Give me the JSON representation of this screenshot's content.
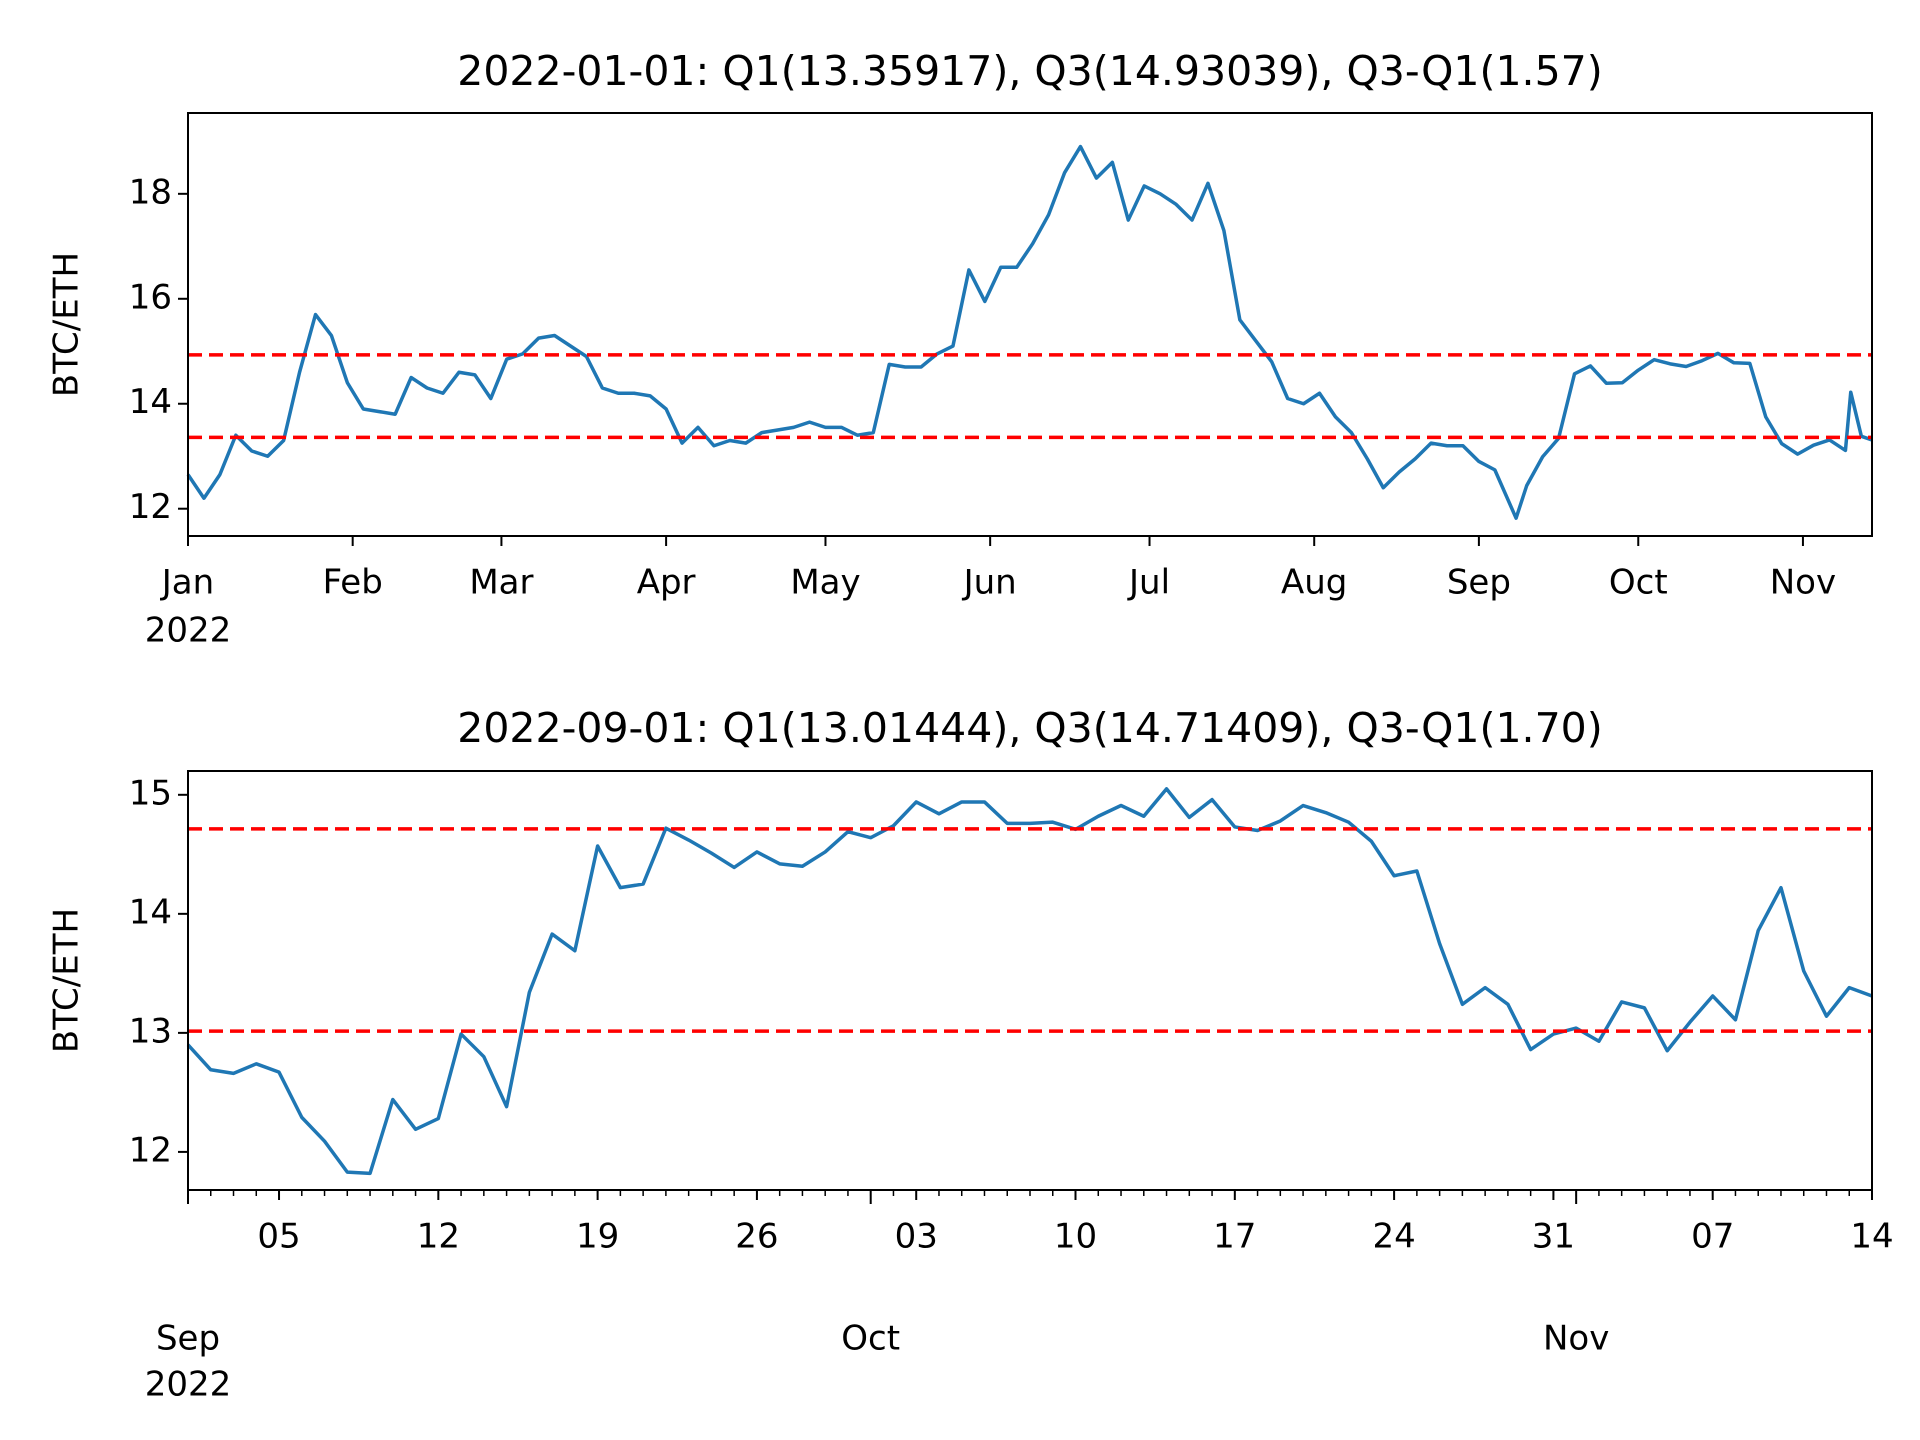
{
  "chart_data": [
    {
      "type": "line",
      "title": "2022-01-01: Q1(13.35917), Q3(14.93039), Q3-Q1(1.57)",
      "y_label": "BTC/ETH",
      "x": [
        "2022-01-01",
        "2022-01-04",
        "2022-01-07",
        "2022-01-10",
        "2022-01-13",
        "2022-01-16",
        "2022-01-19",
        "2022-01-22",
        "2022-01-25",
        "2022-01-28",
        "2022-01-31",
        "2022-02-03",
        "2022-02-06",
        "2022-02-09",
        "2022-02-12",
        "2022-02-15",
        "2022-02-18",
        "2022-02-21",
        "2022-02-24",
        "2022-02-27",
        "2022-03-02",
        "2022-03-05",
        "2022-03-08",
        "2022-03-11",
        "2022-03-14",
        "2022-03-17",
        "2022-03-20",
        "2022-03-23",
        "2022-03-26",
        "2022-03-29",
        "2022-04-01",
        "2022-04-04",
        "2022-04-07",
        "2022-04-10",
        "2022-04-13",
        "2022-04-16",
        "2022-04-19",
        "2022-04-22",
        "2022-04-25",
        "2022-04-28",
        "2022-05-01",
        "2022-05-04",
        "2022-05-07",
        "2022-05-10",
        "2022-05-13",
        "2022-05-16",
        "2022-05-19",
        "2022-05-22",
        "2022-05-25",
        "2022-05-28",
        "2022-05-31",
        "2022-06-03",
        "2022-06-06",
        "2022-06-09",
        "2022-06-12",
        "2022-06-15",
        "2022-06-18",
        "2022-06-21",
        "2022-06-24",
        "2022-06-27",
        "2022-06-30",
        "2022-07-03",
        "2022-07-06",
        "2022-07-09",
        "2022-07-12",
        "2022-07-15",
        "2022-07-18",
        "2022-07-21",
        "2022-07-24",
        "2022-07-27",
        "2022-07-30",
        "2022-08-02",
        "2022-08-05",
        "2022-08-08",
        "2022-08-11",
        "2022-08-14",
        "2022-08-17",
        "2022-08-20",
        "2022-08-23",
        "2022-08-26",
        "2022-08-29",
        "2022-09-01",
        "2022-09-04",
        "2022-09-08",
        "2022-09-10",
        "2022-09-13",
        "2022-09-16",
        "2022-09-19",
        "2022-09-22",
        "2022-09-25",
        "2022-09-28",
        "2022-10-01",
        "2022-10-04",
        "2022-10-07",
        "2022-10-10",
        "2022-10-13",
        "2022-10-16",
        "2022-10-19",
        "2022-10-22",
        "2022-10-25",
        "2022-10-28",
        "2022-10-31",
        "2022-11-03",
        "2022-11-06",
        "2022-11-09",
        "2022-11-10",
        "2022-11-12",
        "2022-11-14"
      ],
      "series": [
        {
          "color": "#1f77b4",
          "values": [
            12.65,
            12.2,
            12.65,
            13.4,
            13.1,
            13.0,
            13.3,
            14.6,
            15.7,
            15.3,
            14.4,
            13.9,
            13.85,
            13.8,
            14.5,
            14.3,
            14.2,
            14.6,
            14.55,
            14.1,
            14.85,
            14.95,
            15.25,
            15.3,
            15.1,
            14.9,
            14.3,
            14.2,
            14.2,
            14.15,
            13.9,
            13.25,
            13.55,
            13.2,
            13.3,
            13.25,
            13.45,
            13.5,
            13.55,
            13.65,
            13.55,
            13.55,
            13.4,
            13.45,
            14.75,
            14.7,
            14.7,
            14.95,
            15.1,
            16.55,
            15.95,
            16.6,
            16.6,
            17.05,
            17.6,
            18.4,
            18.9,
            18.3,
            18.6,
            17.5,
            18.15,
            18.0,
            17.8,
            17.5,
            18.2,
            17.3,
            15.6,
            15.2,
            14.8,
            14.1,
            14.0,
            14.2,
            13.75,
            13.45,
            12.95,
            12.4,
            12.7,
            12.95,
            13.25,
            13.2,
            13.2,
            12.9,
            12.74,
            11.82,
            12.44,
            12.99,
            13.34,
            14.57,
            14.72,
            14.39,
            14.4,
            14.64,
            14.84,
            14.76,
            14.71,
            14.82,
            14.96,
            14.78,
            14.77,
            13.75,
            13.24,
            13.04,
            13.21,
            13.31,
            13.11,
            14.22,
            13.38,
            13.31
          ]
        }
      ],
      "hlines": [
        {
          "value": 13.35917,
          "color": "#ff0000"
        },
        {
          "value": 14.93039,
          "color": "#ff0000"
        }
      ],
      "xlim": [
        "2022-01-01",
        "2022-11-14"
      ],
      "xticks": [
        {
          "value": "2022-01-01",
          "label": "Jan",
          "sublabel": "2022"
        },
        {
          "value": "2022-02-01",
          "label": "Feb"
        },
        {
          "value": "2022-03-01",
          "label": "Mar"
        },
        {
          "value": "2022-04-01",
          "label": "Apr"
        },
        {
          "value": "2022-05-01",
          "label": "May"
        },
        {
          "value": "2022-06-01",
          "label": "Jun"
        },
        {
          "value": "2022-07-01",
          "label": "Jul"
        },
        {
          "value": "2022-08-01",
          "label": "Aug"
        },
        {
          "value": "2022-09-01",
          "label": "Sep"
        },
        {
          "value": "2022-10-01",
          "label": "Oct"
        },
        {
          "value": "2022-11-01",
          "label": "Nov"
        }
      ],
      "ylim": [
        11.48,
        19.54
      ],
      "yticks": [
        12,
        14,
        16,
        18
      ]
    },
    {
      "type": "line",
      "title": "2022-09-01: Q1(13.01444), Q3(14.71409), Q3-Q1(1.70)",
      "y_label": "BTC/ETH",
      "x": [
        "2022-09-01",
        "2022-09-02",
        "2022-09-03",
        "2022-09-04",
        "2022-09-05",
        "2022-09-06",
        "2022-09-07",
        "2022-09-08",
        "2022-09-09",
        "2022-09-10",
        "2022-09-11",
        "2022-09-12",
        "2022-09-13",
        "2022-09-14",
        "2022-09-15",
        "2022-09-16",
        "2022-09-17",
        "2022-09-18",
        "2022-09-19",
        "2022-09-20",
        "2022-09-21",
        "2022-09-22",
        "2022-09-23",
        "2022-09-24",
        "2022-09-25",
        "2022-09-26",
        "2022-09-27",
        "2022-09-28",
        "2022-09-29",
        "2022-09-30",
        "2022-10-01",
        "2022-10-02",
        "2022-10-03",
        "2022-10-04",
        "2022-10-05",
        "2022-10-06",
        "2022-10-07",
        "2022-10-08",
        "2022-10-09",
        "2022-10-10",
        "2022-10-11",
        "2022-10-12",
        "2022-10-13",
        "2022-10-14",
        "2022-10-15",
        "2022-10-16",
        "2022-10-17",
        "2022-10-18",
        "2022-10-19",
        "2022-10-20",
        "2022-10-21",
        "2022-10-22",
        "2022-10-23",
        "2022-10-24",
        "2022-10-25",
        "2022-10-26",
        "2022-10-27",
        "2022-10-28",
        "2022-10-29",
        "2022-10-30",
        "2022-10-31",
        "2022-11-01",
        "2022-11-02",
        "2022-11-03",
        "2022-11-04",
        "2022-11-05",
        "2022-11-06",
        "2022-11-07",
        "2022-11-08",
        "2022-11-09",
        "2022-11-10",
        "2022-11-11",
        "2022-11-12",
        "2022-11-13",
        "2022-11-14"
      ],
      "series": [
        {
          "color": "#1f77b4",
          "values": [
            12.9,
            12.69,
            12.66,
            12.74,
            12.67,
            12.29,
            12.09,
            11.83,
            11.82,
            12.44,
            12.19,
            12.28,
            12.99,
            12.8,
            12.38,
            13.34,
            13.83,
            13.69,
            14.57,
            14.22,
            14.25,
            14.72,
            14.62,
            14.51,
            14.39,
            14.52,
            14.42,
            14.4,
            14.52,
            14.69,
            14.64,
            14.74,
            14.94,
            14.84,
            14.94,
            14.94,
            14.76,
            14.76,
            14.77,
            14.71,
            14.82,
            14.91,
            14.82,
            15.05,
            14.81,
            14.96,
            14.73,
            14.7,
            14.78,
            14.91,
            14.85,
            14.77,
            14.61,
            14.32,
            14.36,
            13.75,
            13.24,
            13.38,
            13.24,
            12.86,
            12.99,
            13.04,
            12.93,
            13.26,
            13.21,
            12.85,
            13.09,
            13.31,
            13.11,
            13.86,
            14.22,
            13.52,
            13.14,
            13.38,
            13.31
          ]
        }
      ],
      "hlines": [
        {
          "value": 13.01444,
          "color": "#ff0000"
        },
        {
          "value": 14.71409,
          "color": "#ff0000"
        }
      ],
      "xlim": [
        "2022-09-01",
        "2022-11-14"
      ],
      "xticks": [
        {
          "value": "2022-09-05",
          "label": "05"
        },
        {
          "value": "2022-09-12",
          "label": "12"
        },
        {
          "value": "2022-09-19",
          "label": "19"
        },
        {
          "value": "2022-09-26",
          "label": "26"
        },
        {
          "value": "2022-10-03",
          "label": "03"
        },
        {
          "value": "2022-10-10",
          "label": "10"
        },
        {
          "value": "2022-10-17",
          "label": "17"
        },
        {
          "value": "2022-10-24",
          "label": "24"
        },
        {
          "value": "2022-10-31",
          "label": "31"
        },
        {
          "value": "2022-11-07",
          "label": "07"
        },
        {
          "value": "2022-11-14",
          "label": "14"
        }
      ],
      "month_ticks": [
        {
          "value": "2022-09-01",
          "label": "Sep",
          "sublabel": "2022"
        },
        {
          "value": "2022-10-01",
          "label": "Oct"
        },
        {
          "value": "2022-11-01",
          "label": "Nov"
        }
      ],
      "ylim": [
        11.68,
        15.2
      ],
      "yticks": [
        12,
        13,
        14,
        15
      ]
    }
  ]
}
